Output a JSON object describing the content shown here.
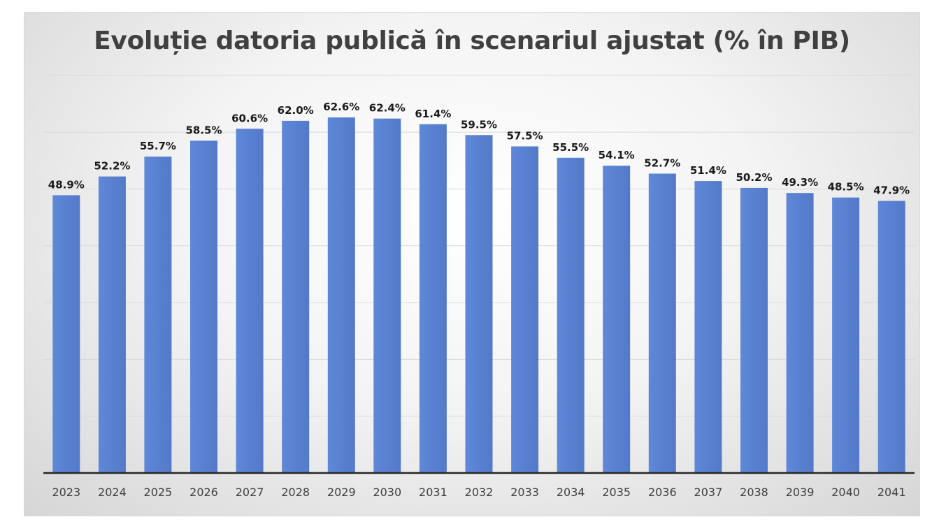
{
  "chart_data": {
    "type": "bar",
    "title": "Evoluție datoria publică în scenariul ajustat (% în PIB)",
    "categories": [
      "2023",
      "2024",
      "2025",
      "2026",
      "2027",
      "2028",
      "2029",
      "2030",
      "2031",
      "2032",
      "2033",
      "2034",
      "2035",
      "2036",
      "2037",
      "2038",
      "2039",
      "2040",
      "2041"
    ],
    "values": [
      48.9,
      52.2,
      55.7,
      58.5,
      60.6,
      62.0,
      62.6,
      62.4,
      61.4,
      59.5,
      57.5,
      55.5,
      54.1,
      52.7,
      51.4,
      50.2,
      49.3,
      48.5,
      47.9
    ],
    "data_labels": [
      "48.9%",
      "52.2%",
      "55.7%",
      "58.5%",
      "60.6%",
      "62.0%",
      "62.6%",
      "62.4%",
      "61.4%",
      "59.5%",
      "57.5%",
      "55.5%",
      "54.1%",
      "52.7%",
      "51.4%",
      "50.2%",
      "49.3%",
      "48.5%",
      "47.9%"
    ],
    "xlabel": "",
    "ylabel": "",
    "ylim": [
      0,
      70
    ],
    "grid": true,
    "legend": "none",
    "bar_color": "#5b84d4",
    "gridline_color": "#d9d9d9",
    "axis_color": "#262626"
  }
}
